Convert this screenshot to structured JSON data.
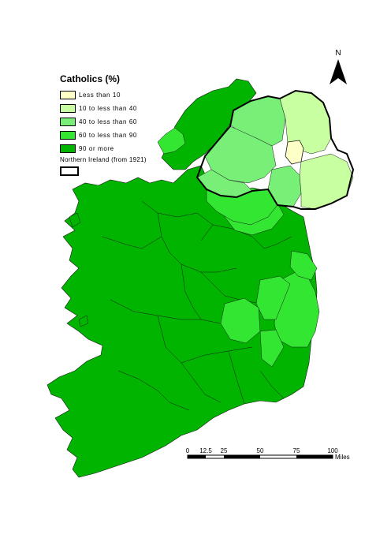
{
  "legend": {
    "title": "Catholics (%)",
    "items": [
      {
        "label": "Less than 10",
        "color": "#ffffc8"
      },
      {
        "label": "10 to less than 40",
        "color": "#c8ffa0"
      },
      {
        "label": "40 to less than 60",
        "color": "#78f078"
      },
      {
        "label": "60 to less than 90",
        "color": "#32e632"
      },
      {
        "label": "90 or more",
        "color": "#00b400"
      }
    ],
    "ni_label": "Northern Ireland (from 1921)"
  },
  "north_arrow": {
    "letter": "N"
  },
  "scale": {
    "ticks": [
      "0",
      "12.5",
      "25",
      "50",
      "75",
      "100"
    ],
    "tick_values": [
      0,
      12.5,
      25,
      50,
      75,
      100
    ],
    "units": "Miles"
  }
}
